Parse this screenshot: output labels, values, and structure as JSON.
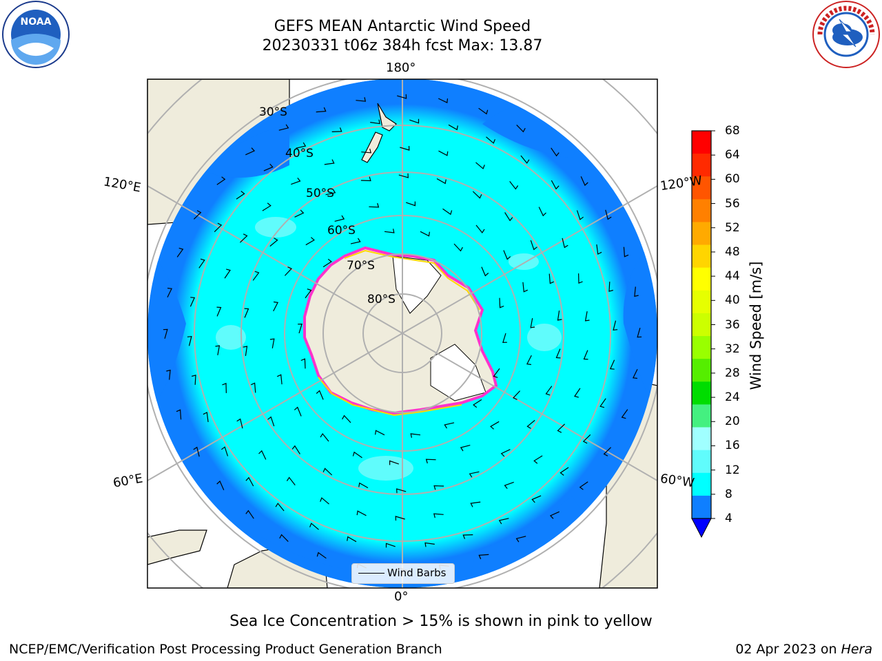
{
  "header": {
    "title_line1": "GEFS MEAN Antarctic Wind Speed",
    "title_line2": "20230331 t06z 384h fcst   Max: 13.87"
  },
  "logos": {
    "left": "noaa-logo",
    "right": "nws-logo"
  },
  "map": {
    "projection": "south-polar-stereographic",
    "longitude_labels": {
      "top": "180°",
      "bottom": "0°",
      "upper_left": "120°E",
      "upper_right": "120°W",
      "lower_left": "60°E",
      "lower_right": "60°W"
    },
    "latitude_labels": [
      "30°S",
      "40°S",
      "50°S",
      "60°S",
      "70°S",
      "80°S"
    ],
    "legend_label": "Wind Barbs",
    "colors": {
      "land": "#efecdc",
      "ocean_4_8": "#0f7fff",
      "ocean_8_12": "#00ffff",
      "ocean_12_16": "#60fcfc",
      "sea_ice_edge": "#ff33cc",
      "sea_ice_high": "#ffd700"
    }
  },
  "colorbar": {
    "label": "Wind Speed [m/s]",
    "ticks": [
      "68",
      "64",
      "60",
      "56",
      "52",
      "48",
      "44",
      "40",
      "36",
      "32",
      "28",
      "24",
      "20",
      "16",
      "12",
      "8",
      "4"
    ],
    "colors": [
      "#ff0000",
      "#ff2a00",
      "#ff5500",
      "#ff8000",
      "#ffaa00",
      "#ffd500",
      "#ffff00",
      "#e6ff00",
      "#ccff00",
      "#99ff00",
      "#55ee00",
      "#00dd00",
      "#44f080",
      "#a0ffff",
      "#60fcfc",
      "#00ffff",
      "#0f7fff"
    ],
    "extend_color": "#0000ff"
  },
  "notes": {
    "sea_ice": "Sea Ice Concentration > 15% is shown in pink to yellow"
  },
  "footer": {
    "org": "NCEP/EMC/Verification Post Processing Product Generation Branch",
    "date": "02 Apr 2023 on",
    "system": "Hera"
  }
}
